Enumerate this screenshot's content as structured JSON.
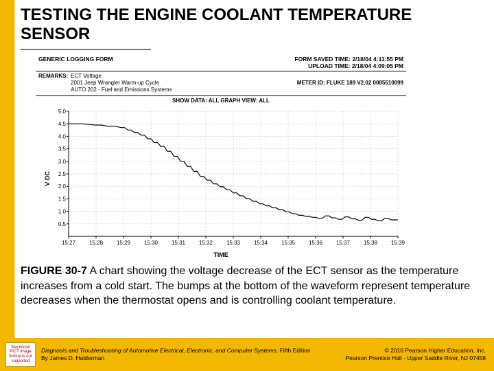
{
  "title": "TESTING THE ENGINE COOLANT TEMPERATURE SENSOR",
  "form": {
    "generic_label": "GENERIC LOGGING FORM",
    "saved_label": "FORM SAVED TIME:",
    "saved_value": "2/18/04 4:11:55 PM",
    "upload_label": "UPLOAD TIME:",
    "upload_value": "2/18/04 4:09:05 PM",
    "remarks_label": "REMARKS:",
    "remarks_line1": "ECT Voltage",
    "remarks_line2": "2001 Jeep Wrangler Warm-up Cycle",
    "remarks_line3": "AUTO 202 - Fuel and Emissions Systems",
    "meter_label": "METER ID:",
    "meter_value": "FLUKE 189 V2.02 0085510099",
    "show_data": "SHOW DATA: ALL GRAPH VIEW: ALL"
  },
  "chart": {
    "type": "line-step",
    "ylabel": "V DC",
    "xlabel": "TIME",
    "ylim": [
      0,
      5.0
    ],
    "yticks": [
      "0.5",
      "1.0",
      "1.5",
      "2.0",
      "2.5",
      "3.0",
      "3.5",
      "4.0",
      "4.5",
      "5.0"
    ],
    "xticks": [
      "15:27",
      "15:28",
      "15:29",
      "15:30",
      "15:31",
      "15:32",
      "15:33",
      "15:34",
      "15:35",
      "15:36",
      "15:37",
      "15:38",
      "15:39"
    ],
    "background_color": "#ffffff",
    "grid_color": "#c9c9c9",
    "line_color": "#000000",
    "line_width": 1.2,
    "tick_fontsize": 8,
    "label_fontsize": 9,
    "series": [
      [
        0.0,
        4.5
      ],
      [
        0.04,
        4.5
      ],
      [
        0.08,
        4.45
      ],
      [
        0.1,
        4.45
      ],
      [
        0.12,
        4.4
      ],
      [
        0.14,
        4.4
      ],
      [
        0.16,
        4.35
      ],
      [
        0.17,
        4.35
      ],
      [
        0.18,
        4.25
      ],
      [
        0.19,
        4.25
      ],
      [
        0.2,
        4.15
      ],
      [
        0.21,
        4.15
      ],
      [
        0.22,
        4.05
      ],
      [
        0.23,
        4.05
      ],
      [
        0.24,
        3.9
      ],
      [
        0.25,
        3.9
      ],
      [
        0.26,
        3.75
      ],
      [
        0.27,
        3.75
      ],
      [
        0.28,
        3.6
      ],
      [
        0.29,
        3.6
      ],
      [
        0.3,
        3.4
      ],
      [
        0.31,
        3.4
      ],
      [
        0.32,
        3.2
      ],
      [
        0.33,
        3.2
      ],
      [
        0.34,
        3.0
      ],
      [
        0.35,
        3.0
      ],
      [
        0.36,
        2.8
      ],
      [
        0.37,
        2.8
      ],
      [
        0.38,
        2.6
      ],
      [
        0.39,
        2.6
      ],
      [
        0.4,
        2.4
      ],
      [
        0.41,
        2.4
      ],
      [
        0.42,
        2.25
      ],
      [
        0.43,
        2.25
      ],
      [
        0.44,
        2.1
      ],
      [
        0.45,
        2.1
      ],
      [
        0.46,
        1.98
      ],
      [
        0.47,
        1.98
      ],
      [
        0.48,
        1.86
      ],
      [
        0.49,
        1.86
      ],
      [
        0.5,
        1.74
      ],
      [
        0.51,
        1.74
      ],
      [
        0.52,
        1.62
      ],
      [
        0.53,
        1.62
      ],
      [
        0.54,
        1.5
      ],
      [
        0.55,
        1.5
      ],
      [
        0.56,
        1.4
      ],
      [
        0.57,
        1.4
      ],
      [
        0.58,
        1.3
      ],
      [
        0.59,
        1.3
      ],
      [
        0.6,
        1.22
      ],
      [
        0.61,
        1.22
      ],
      [
        0.62,
        1.14
      ],
      [
        0.63,
        1.14
      ],
      [
        0.64,
        1.06
      ],
      [
        0.65,
        1.06
      ],
      [
        0.66,
        0.98
      ],
      [
        0.67,
        0.98
      ],
      [
        0.68,
        0.9
      ],
      [
        0.69,
        0.9
      ],
      [
        0.7,
        0.84
      ],
      [
        0.71,
        0.84
      ],
      [
        0.72,
        0.8
      ],
      [
        0.73,
        0.8
      ],
      [
        0.74,
        0.76
      ],
      [
        0.75,
        0.76
      ],
      [
        0.76,
        0.72
      ],
      [
        0.77,
        0.72
      ],
      [
        0.78,
        0.82
      ],
      [
        0.79,
        0.82
      ],
      [
        0.8,
        0.74
      ],
      [
        0.81,
        0.74
      ],
      [
        0.82,
        0.68
      ],
      [
        0.83,
        0.68
      ],
      [
        0.84,
        0.78
      ],
      [
        0.85,
        0.78
      ],
      [
        0.86,
        0.7
      ],
      [
        0.87,
        0.7
      ],
      [
        0.88,
        0.64
      ],
      [
        0.89,
        0.64
      ],
      [
        0.9,
        0.76
      ],
      [
        0.91,
        0.76
      ],
      [
        0.92,
        0.68
      ],
      [
        0.93,
        0.68
      ],
      [
        0.94,
        0.62
      ],
      [
        0.95,
        0.62
      ],
      [
        0.96,
        0.72
      ],
      [
        0.97,
        0.72
      ],
      [
        0.98,
        0.66
      ],
      [
        1.0,
        0.66
      ]
    ]
  },
  "caption": {
    "fignum": "FIGURE 30-7",
    "text": " A chart showing the voltage decrease of the ECT sensor as the temperature increases from a cold start. The bumps at the bottom of the waveform represent temperature decreases when the thermostat opens and is controlling coolant temperature."
  },
  "footer": {
    "thumb_text": "Macintosh PICT image format is not supported",
    "book_title": "Diagnosis and Troubleshooting of Automotive Electrical, Electronic, and Computer Systems,",
    "book_edition": " Fifth Edition",
    "book_author": "By James D. Halderman",
    "copyright_line1": "© 2010 Pearson Higher Education, Inc.",
    "copyright_line2": "Pearson Prentice Hall - Upper Saddle River, NJ 07458"
  }
}
